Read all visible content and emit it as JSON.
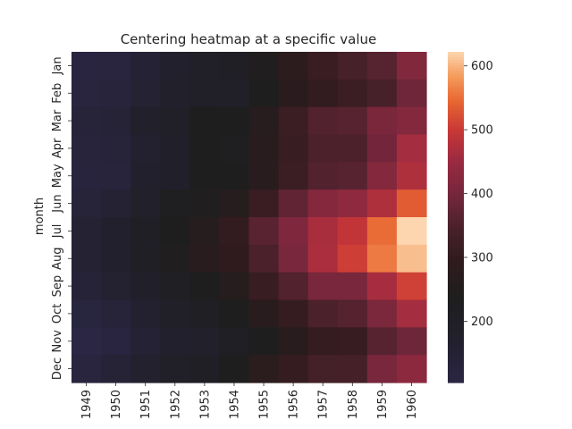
{
  "chart_data": {
    "type": "heatmap",
    "title": "Centering heatmap at a specific value",
    "xlabel": "",
    "ylabel": "month",
    "x": [
      "1949",
      "1950",
      "1951",
      "1952",
      "1953",
      "1954",
      "1955",
      "1956",
      "1957",
      "1958",
      "1959",
      "1960"
    ],
    "y": [
      "Jan",
      "Feb",
      "Mar",
      "Apr",
      "May",
      "Jun",
      "Jul",
      "Aug",
      "Sep",
      "Oct",
      "Nov",
      "Dec"
    ],
    "values": [
      [
        112,
        115,
        145,
        171,
        196,
        204,
        242,
        284,
        315,
        340,
        360,
        417
      ],
      [
        118,
        126,
        150,
        180,
        196,
        188,
        233,
        277,
        301,
        318,
        342,
        391
      ],
      [
        132,
        141,
        178,
        193,
        236,
        235,
        267,
        317,
        356,
        362,
        406,
        419
      ],
      [
        129,
        135,
        163,
        181,
        235,
        227,
        269,
        313,
        348,
        348,
        396,
        461
      ],
      [
        121,
        125,
        172,
        183,
        229,
        234,
        270,
        318,
        355,
        363,
        420,
        472
      ],
      [
        135,
        149,
        178,
        218,
        243,
        264,
        315,
        374,
        422,
        435,
        472,
        535
      ],
      [
        148,
        170,
        199,
        230,
        264,
        302,
        364,
        413,
        465,
        491,
        548,
        622
      ],
      [
        148,
        170,
        199,
        242,
        272,
        293,
        347,
        405,
        467,
        505,
        559,
        606
      ],
      [
        136,
        158,
        184,
        209,
        237,
        259,
        312,
        355,
        404,
        404,
        463,
        508
      ],
      [
        119,
        133,
        162,
        191,
        211,
        229,
        274,
        306,
        347,
        359,
        407,
        461
      ],
      [
        104,
        114,
        146,
        172,
        180,
        203,
        237,
        271,
        305,
        310,
        362,
        390
      ],
      [
        118,
        140,
        166,
        194,
        201,
        229,
        278,
        306,
        336,
        337,
        405,
        432
      ]
    ],
    "center": 235,
    "colorbar": {
      "ticks": [
        200,
        300,
        400,
        500,
        600
      ],
      "range": [
        104,
        622
      ],
      "colormap": "icefire (centered)"
    }
  }
}
